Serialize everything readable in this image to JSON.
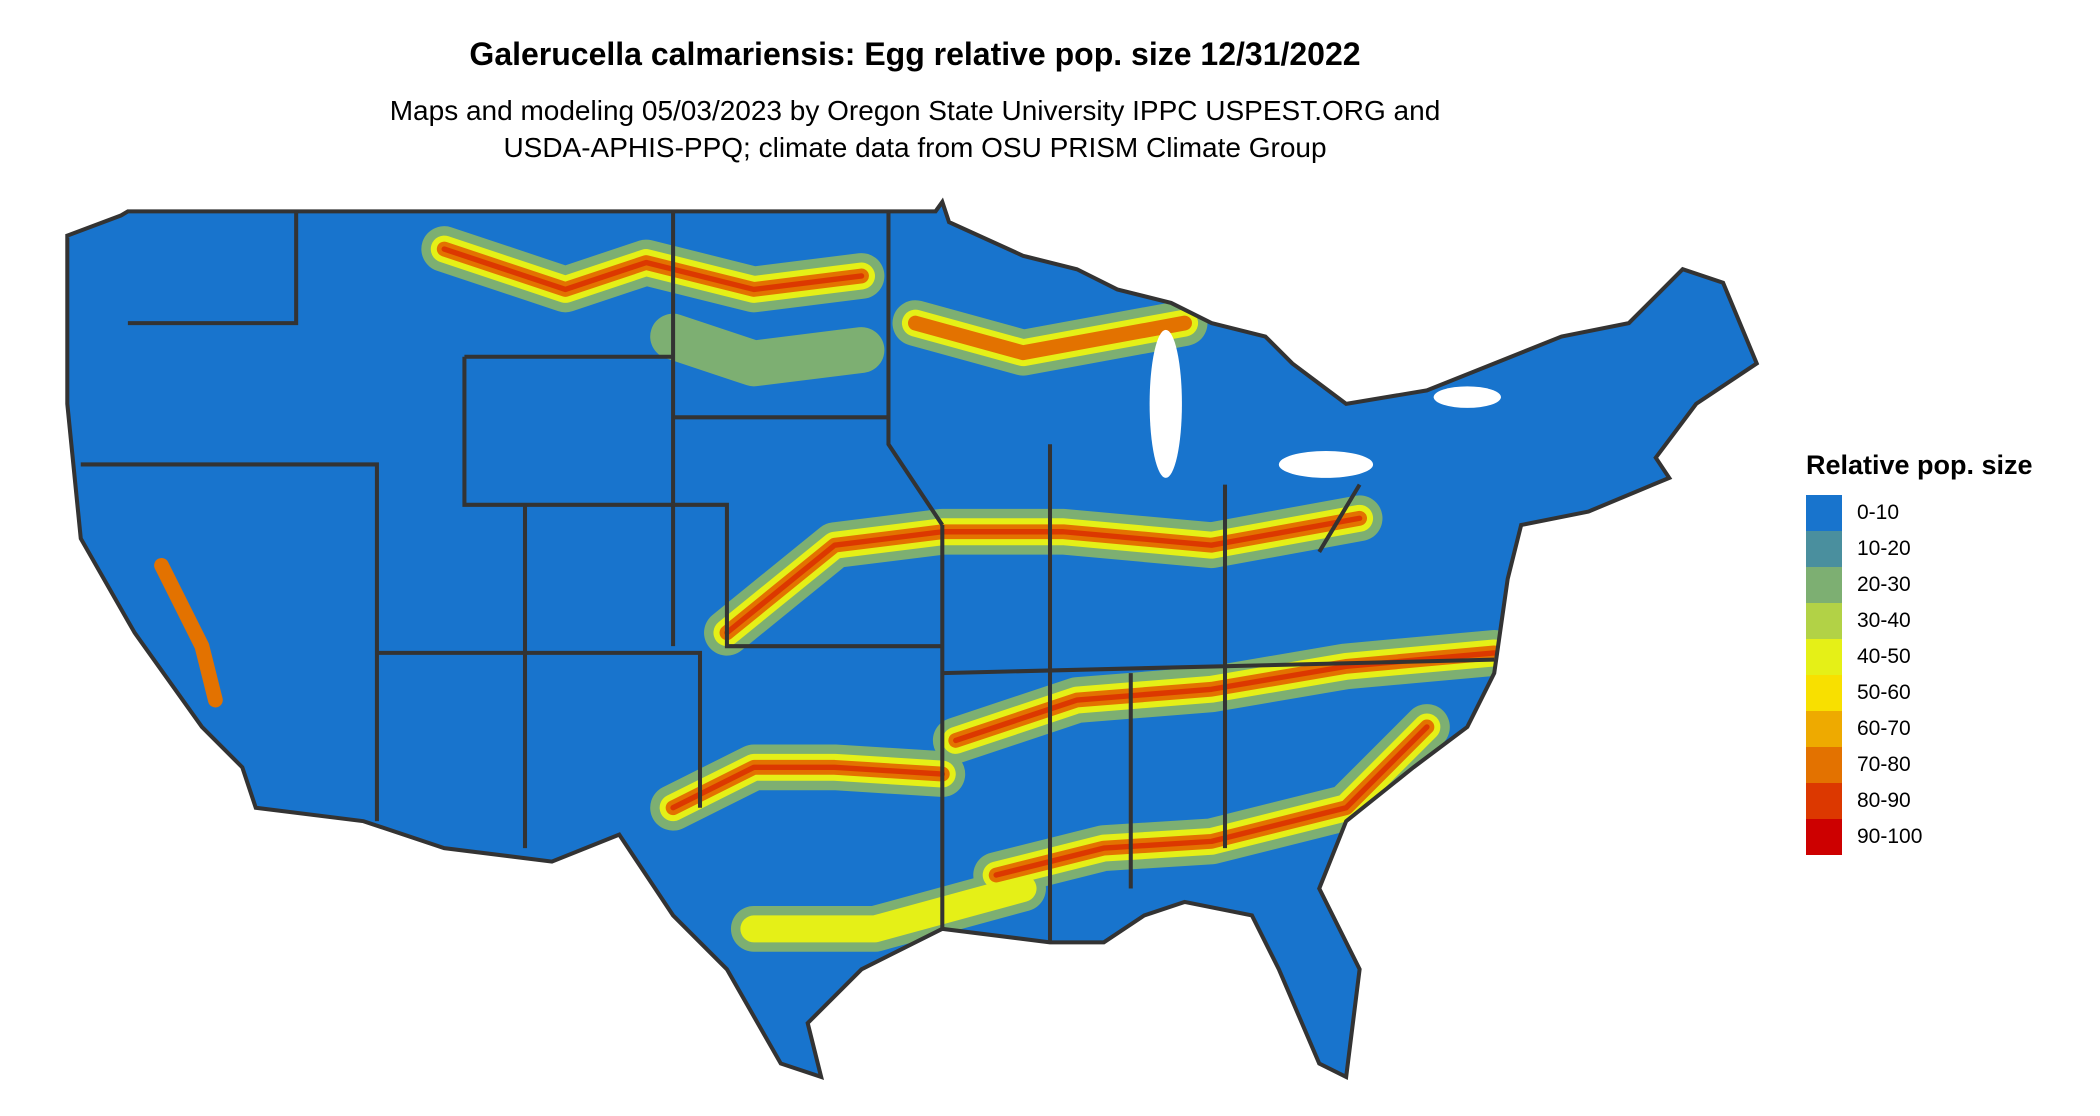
{
  "title": "Galerucella calmariensis: Egg relative pop. size 12/31/2022",
  "subtitle_line1": "Maps and modeling 05/03/2023 by Oregon State University IPPC USPEST.ORG and",
  "subtitle_line2": "USDA-APHIS-PPQ; climate data from OSU PRISM Climate Group",
  "legend": {
    "title": "Relative pop. size",
    "items": [
      {
        "label": "0-10",
        "color": "#1874CD"
      },
      {
        "label": "10-20",
        "color": "#4A8F9E"
      },
      {
        "label": "20-30",
        "color": "#7DAF72"
      },
      {
        "label": "30-40",
        "color": "#B2D246"
      },
      {
        "label": "40-50",
        "color": "#E5F017"
      },
      {
        "label": "50-60",
        "color": "#F8E000"
      },
      {
        "label": "60-70",
        "color": "#EEAA00"
      },
      {
        "label": "70-80",
        "color": "#E37200"
      },
      {
        "label": "80-90",
        "color": "#DC3800"
      },
      {
        "label": "90-100",
        "color": "#CD0000"
      }
    ]
  },
  "map": {
    "region": "Contiguous United States",
    "border_color": "#333333"
  }
}
